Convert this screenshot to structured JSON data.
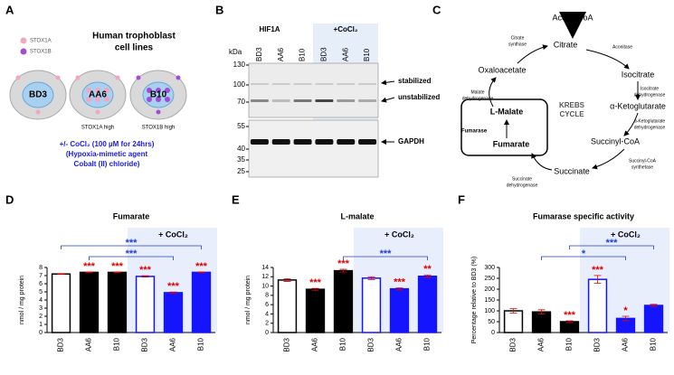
{
  "panel_a": {
    "letter": "A",
    "title_lines": [
      "Human trophoblast",
      "cell lines"
    ],
    "legend": [
      "STOX1A",
      "STOX1B"
    ],
    "cells": [
      "BD3",
      "AA6",
      "B10"
    ],
    "cell_notes": [
      "STOX1A high",
      "STOX1B high"
    ],
    "treatment_lines": [
      "+/- CoCl₂ (100 µM for 24hrs)",
      "(Hypoxia-mimetic agent",
      "Cobalt (II) chloride)"
    ]
  },
  "panel_b": {
    "letter": "B",
    "groups": [
      "HIF1A",
      "+CoCl₂"
    ],
    "unit": "kDa",
    "markers": [
      130,
      100,
      70,
      55,
      40,
      35,
      25
    ],
    "lanes": [
      "BD3",
      "AA6",
      "B10",
      "BD3",
      "AA6",
      "B10"
    ],
    "bands": [
      "stabilized",
      "unstabilized",
      "GAPDH"
    ]
  },
  "panel_c": {
    "letter": "C",
    "metabolites": [
      "Acetyl-CoA",
      "Citrate",
      "Isocitrate",
      "α-Ketoglutarate",
      "Succinyl-CoA",
      "Succinate",
      "Fumarate",
      "L-Malate",
      "Oxaloacetate"
    ],
    "enzymes": [
      [
        "Citrate",
        "synthase"
      ],
      [
        "Aconitase"
      ],
      [
        "Isocitrate",
        "dehydrogenase"
      ],
      [
        "α-Ketoglutarate",
        "dehydrogenase"
      ],
      [
        "Succinyl-CoA",
        "synthetase"
      ],
      [
        "Succinate",
        "dehydrogenase"
      ],
      [
        "Fumarase"
      ],
      [
        "Malate",
        "dehydrogenase"
      ]
    ],
    "cycle_label": [
      "KREBS",
      "CYCLE"
    ]
  },
  "chart_data": [
    {
      "type": "bar",
      "panel": "D",
      "title": "Fumarate",
      "ylabel": "nmol / mg protein",
      "group_label": "+ CoCl₂",
      "categories": [
        "BD3",
        "AA6",
        "B10",
        "BD3",
        "AA6",
        "B10"
      ],
      "values": [
        7.2,
        7.4,
        7.4,
        6.9,
        4.9,
        7.4
      ],
      "errors": [
        0.05,
        0.05,
        0.05,
        0.08,
        0.08,
        0.05
      ],
      "fill_colors": [
        "#ffffff",
        "#000000",
        "#000000",
        "#ffffff",
        "#1414ff",
        "#1414ff"
      ],
      "edge_colors": [
        "#000000",
        "#000000",
        "#000000",
        "#1414ff",
        "#1414ff",
        "#1414ff"
      ],
      "significance": [
        null,
        "***",
        "***",
        "***",
        "***",
        "***"
      ],
      "comparisons": [
        "***",
        "***"
      ],
      "comparison_color": "#1f3fd8",
      "significance_color": "#e00000",
      "ylim": [
        0,
        8
      ],
      "yticks": [
        0,
        1,
        2,
        3,
        4,
        5,
        6,
        7,
        8
      ]
    },
    {
      "type": "bar",
      "panel": "E",
      "title": "L-malate",
      "ylabel": "nmol / mg protein",
      "group_label": "+ CoCl₂",
      "categories": [
        "BD3",
        "AA6",
        "B10",
        "BD3",
        "AA6",
        "B10"
      ],
      "values": [
        11.3,
        9.3,
        13.3,
        11.7,
        9.4,
        12.1
      ],
      "errors": [
        0.3,
        0.2,
        0.3,
        0.3,
        0.2,
        0.3
      ],
      "fill_colors": [
        "#ffffff",
        "#000000",
        "#000000",
        "#ffffff",
        "#1414ff",
        "#1414ff"
      ],
      "edge_colors": [
        "#000000",
        "#000000",
        "#000000",
        "#1414ff",
        "#1414ff",
        "#1414ff"
      ],
      "significance": [
        null,
        "***",
        "***",
        null,
        "***",
        "**"
      ],
      "comparisons": [
        "***"
      ],
      "comparison_color": "#1f3fd8",
      "significance_color": "#e00000",
      "ylim": [
        0,
        14
      ],
      "yticks": [
        0,
        2,
        4,
        6,
        8,
        10,
        12,
        14
      ]
    },
    {
      "type": "bar",
      "panel": "F",
      "title": "Fumarase specific activity",
      "ylabel": "Percentage relative to BD3 (%)",
      "group_label": "+ CoCl₂",
      "categories": [
        "BD3",
        "AA6",
        "B10",
        "BD3",
        "AA6",
        "B10"
      ],
      "values": [
        100,
        95,
        50,
        245,
        65,
        125
      ],
      "errors": [
        10,
        10,
        4,
        18,
        10,
        5
      ],
      "fill_colors": [
        "#ffffff",
        "#000000",
        "#000000",
        "#ffffff",
        "#1414ff",
        "#1414ff"
      ],
      "edge_colors": [
        "#000000",
        "#000000",
        "#000000",
        "#1414ff",
        "#1414ff",
        "#1414ff"
      ],
      "significance": [
        null,
        null,
        "***",
        "***",
        "*",
        null
      ],
      "comparisons": [
        "*",
        "***"
      ],
      "comparison_color": "#1f3fd8",
      "significance_color": "#e00000",
      "ylim": [
        0,
        300
      ],
      "yticks": [
        0,
        50,
        100,
        150,
        200,
        250,
        300
      ]
    }
  ]
}
